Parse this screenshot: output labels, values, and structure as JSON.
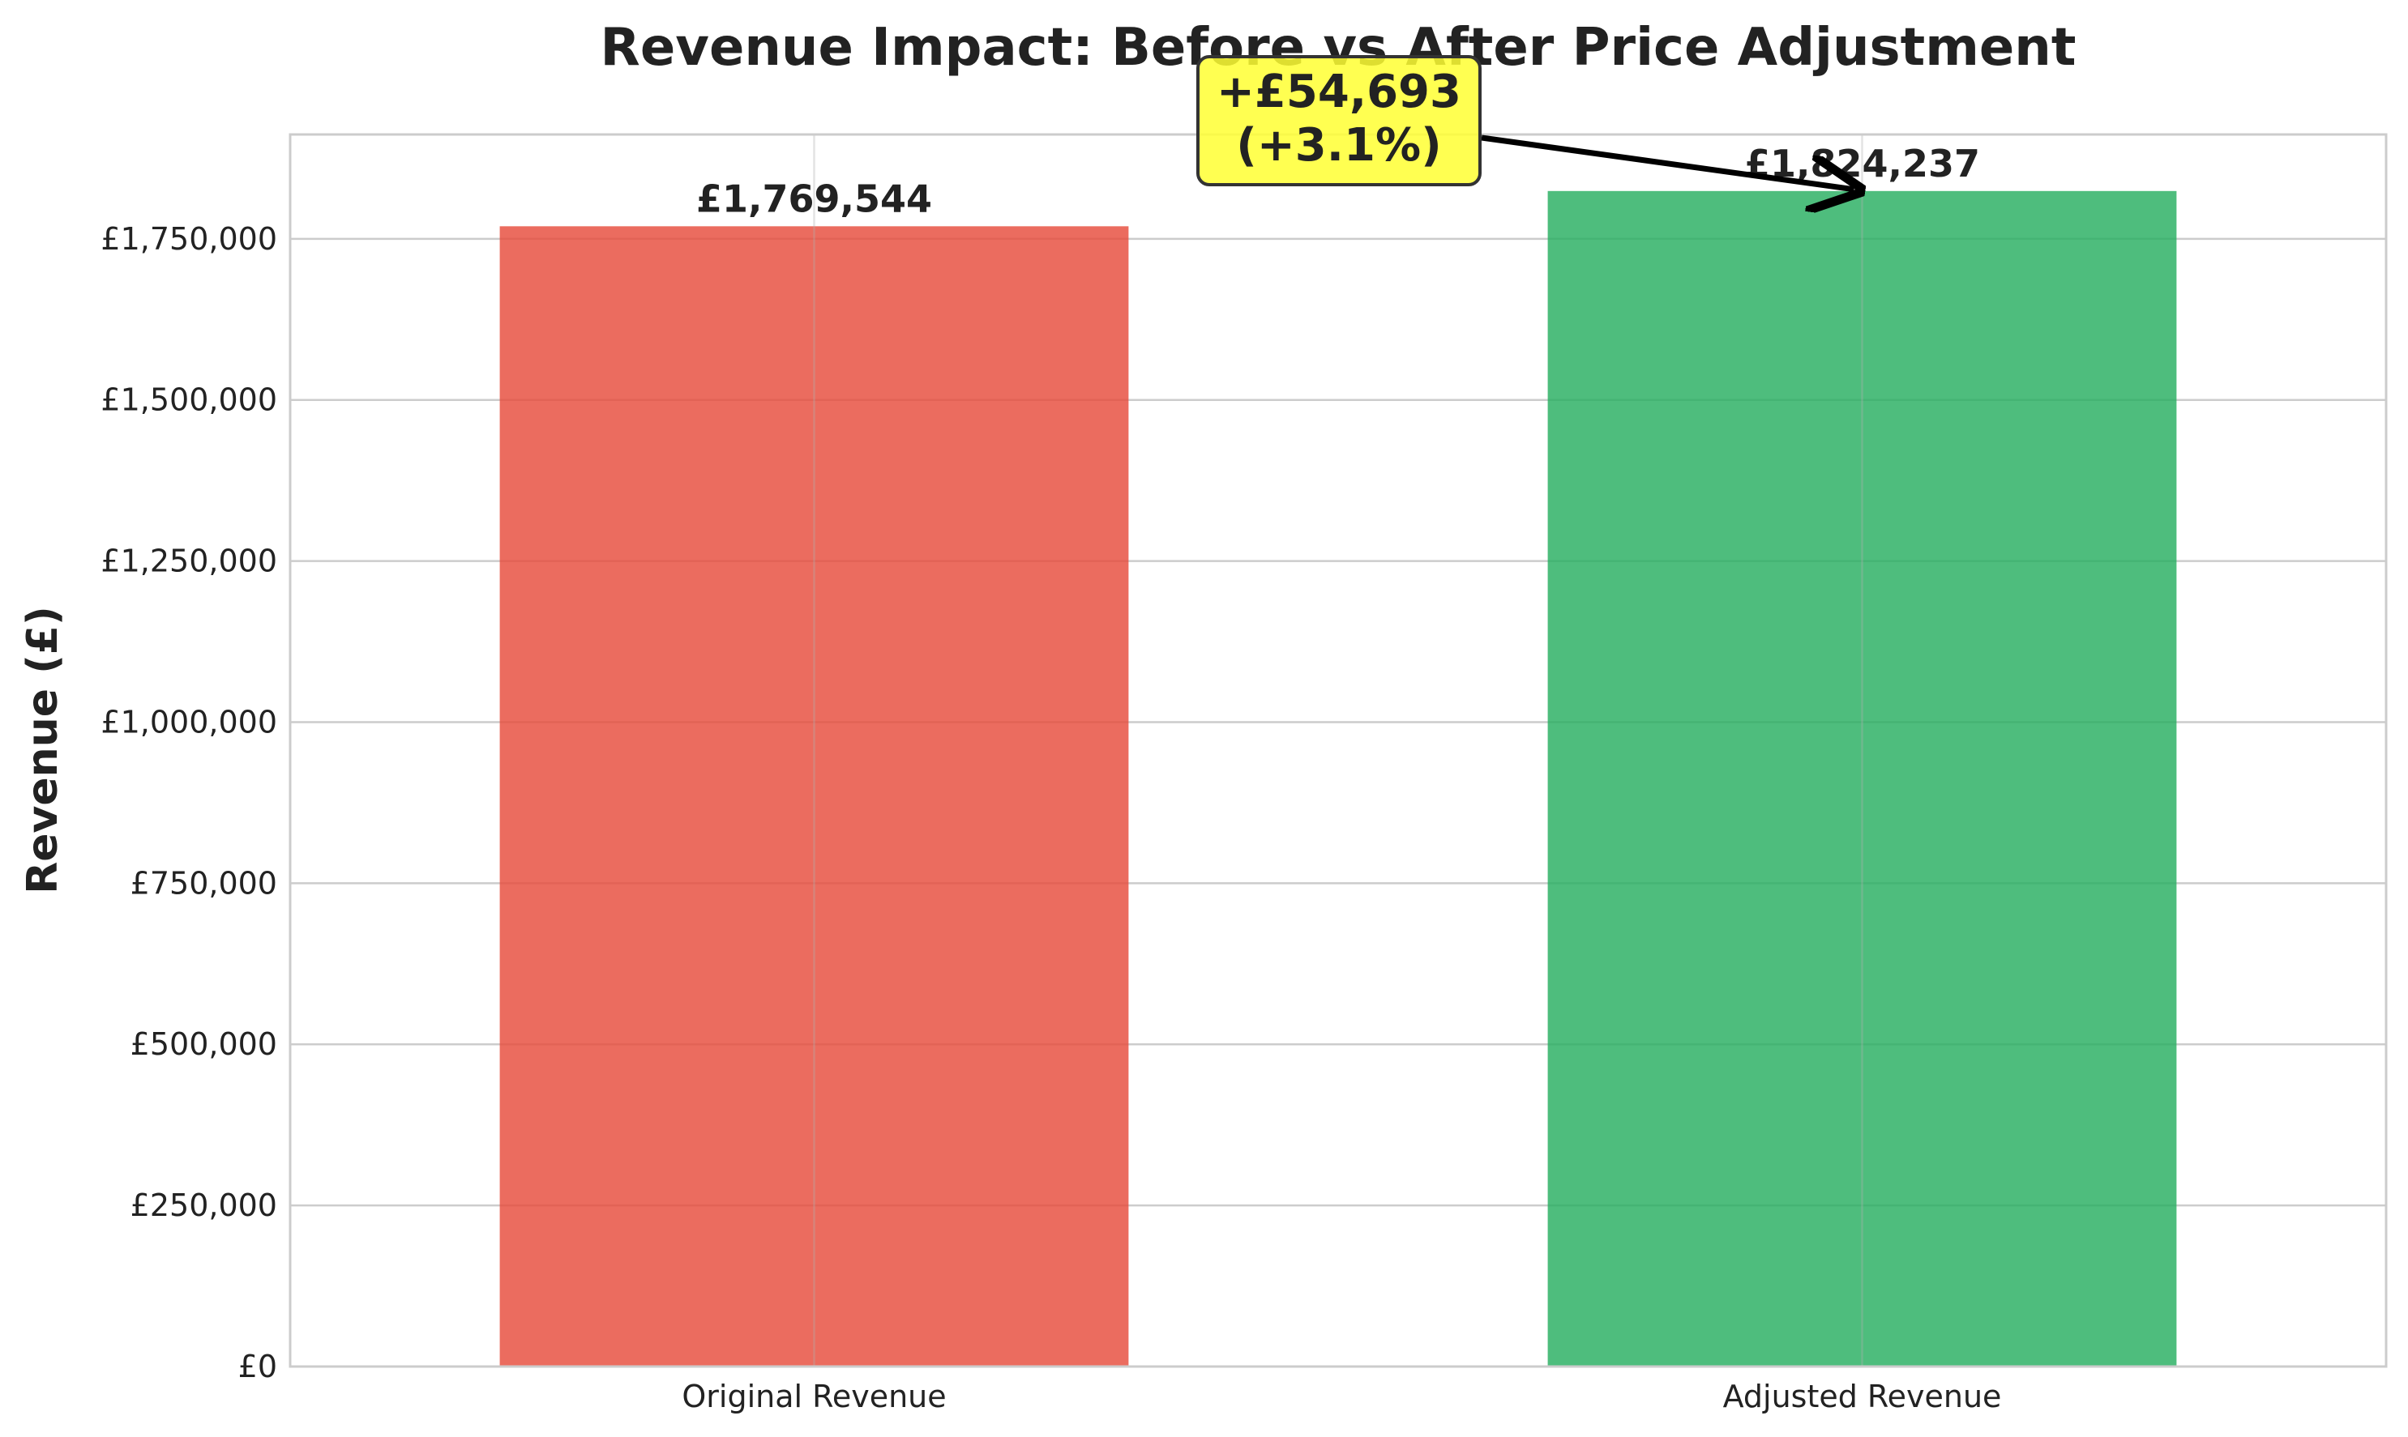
{
  "chart_data": {
    "type": "bar",
    "title": "Revenue Impact: Before vs After Price Adjustment",
    "xlabel": "",
    "ylabel": "Revenue (£)",
    "categories": [
      "Original Revenue",
      "Adjusted Revenue"
    ],
    "values": [
      1769544,
      1824237
    ],
    "value_labels": [
      "£1,769,544",
      "£1,824,237"
    ],
    "colors": [
      "#e74c3c",
      "#27ae60"
    ],
    "ylim": [
      0,
      1912000
    ],
    "yticks": [
      0,
      250000,
      500000,
      750000,
      1000000,
      1250000,
      1500000,
      1750000
    ],
    "ytick_labels": [
      "£0",
      "£250,000",
      "£500,000",
      "£750,000",
      "£1,000,000",
      "£1,250,000",
      "£1,500,000",
      "£1,750,000"
    ],
    "grid": true,
    "annotation": {
      "lines": [
        "+£54,693",
        "(+3.1%)"
      ],
      "box_color": "#ffff33",
      "points_to": "Adjusted Revenue"
    }
  }
}
